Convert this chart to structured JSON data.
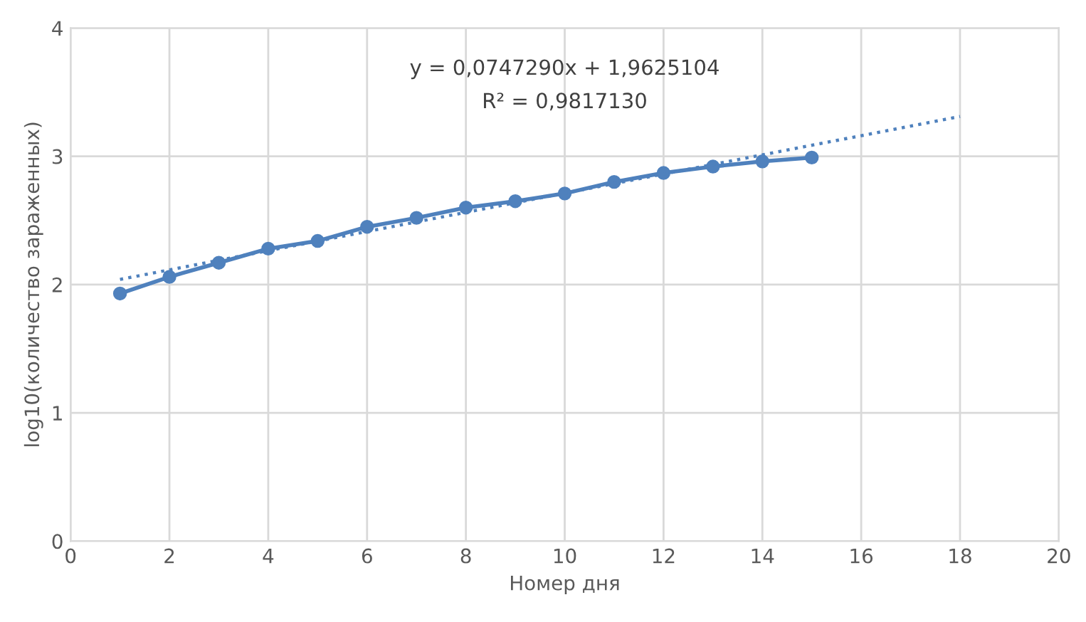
{
  "chart_data": {
    "type": "line",
    "xlabel": "Номер дня",
    "ylabel": "log10(количество зараженных)",
    "annotations": [
      "y = 0,0747290x + 1,9625104",
      "R² = 0,9817130"
    ],
    "x": [
      1,
      2,
      3,
      4,
      5,
      6,
      7,
      8,
      9,
      10,
      11,
      12,
      13,
      14,
      15
    ],
    "series": [
      {
        "color": "#4f81bd",
        "marker": "circle",
        "line_style": "solid",
        "values": [
          1.93,
          2.06,
          2.17,
          2.28,
          2.34,
          2.45,
          2.52,
          2.6,
          2.65,
          2.71,
          2.8,
          2.87,
          2.92,
          2.96,
          2.99
        ]
      },
      {
        "type": "line",
        "color": "#4f81bd",
        "marker": "none",
        "line_style": "dotted",
        "x": [
          1,
          18
        ],
        "values": [
          2.04,
          3.31
        ]
      }
    ],
    "xlim": [
      0,
      20
    ],
    "xticks": [
      0,
      2,
      4,
      6,
      8,
      10,
      12,
      14,
      16,
      18,
      20
    ],
    "ylim": [
      0,
      4
    ],
    "yticks": [
      0,
      1,
      2,
      3,
      4
    ],
    "grid": true
  }
}
